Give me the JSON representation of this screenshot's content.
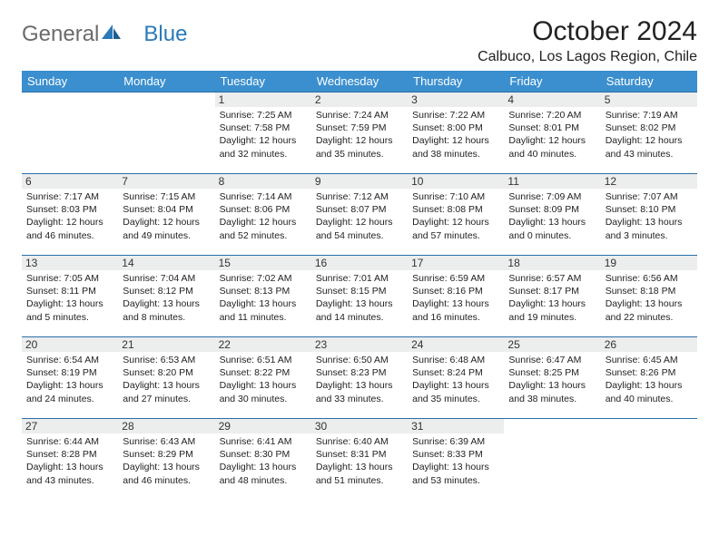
{
  "brand": {
    "part1": "General",
    "part2": "Blue"
  },
  "title": "October 2024",
  "location": "Calbuco, Los Lagos Region, Chile",
  "colors": {
    "header_bg": "#3b8fce",
    "row_border": "#2a6fa8",
    "daynum_bg": "#eceded",
    "logo_gray": "#6b6b6b",
    "logo_blue": "#2a7ab9"
  },
  "weekdays": [
    "Sunday",
    "Monday",
    "Tuesday",
    "Wednesday",
    "Thursday",
    "Friday",
    "Saturday"
  ],
  "weeks": [
    [
      null,
      null,
      {
        "n": "1",
        "sunrise": "7:25 AM",
        "sunset": "7:58 PM",
        "daylight": "12 hours and 32 minutes."
      },
      {
        "n": "2",
        "sunrise": "7:24 AM",
        "sunset": "7:59 PM",
        "daylight": "12 hours and 35 minutes."
      },
      {
        "n": "3",
        "sunrise": "7:22 AM",
        "sunset": "8:00 PM",
        "daylight": "12 hours and 38 minutes."
      },
      {
        "n": "4",
        "sunrise": "7:20 AM",
        "sunset": "8:01 PM",
        "daylight": "12 hours and 40 minutes."
      },
      {
        "n": "5",
        "sunrise": "7:19 AM",
        "sunset": "8:02 PM",
        "daylight": "12 hours and 43 minutes."
      }
    ],
    [
      {
        "n": "6",
        "sunrise": "7:17 AM",
        "sunset": "8:03 PM",
        "daylight": "12 hours and 46 minutes."
      },
      {
        "n": "7",
        "sunrise": "7:15 AM",
        "sunset": "8:04 PM",
        "daylight": "12 hours and 49 minutes."
      },
      {
        "n": "8",
        "sunrise": "7:14 AM",
        "sunset": "8:06 PM",
        "daylight": "12 hours and 52 minutes."
      },
      {
        "n": "9",
        "sunrise": "7:12 AM",
        "sunset": "8:07 PM",
        "daylight": "12 hours and 54 minutes."
      },
      {
        "n": "10",
        "sunrise": "7:10 AM",
        "sunset": "8:08 PM",
        "daylight": "12 hours and 57 minutes."
      },
      {
        "n": "11",
        "sunrise": "7:09 AM",
        "sunset": "8:09 PM",
        "daylight": "13 hours and 0 minutes."
      },
      {
        "n": "12",
        "sunrise": "7:07 AM",
        "sunset": "8:10 PM",
        "daylight": "13 hours and 3 minutes."
      }
    ],
    [
      {
        "n": "13",
        "sunrise": "7:05 AM",
        "sunset": "8:11 PM",
        "daylight": "13 hours and 5 minutes."
      },
      {
        "n": "14",
        "sunrise": "7:04 AM",
        "sunset": "8:12 PM",
        "daylight": "13 hours and 8 minutes."
      },
      {
        "n": "15",
        "sunrise": "7:02 AM",
        "sunset": "8:13 PM",
        "daylight": "13 hours and 11 minutes."
      },
      {
        "n": "16",
        "sunrise": "7:01 AM",
        "sunset": "8:15 PM",
        "daylight": "13 hours and 14 minutes."
      },
      {
        "n": "17",
        "sunrise": "6:59 AM",
        "sunset": "8:16 PM",
        "daylight": "13 hours and 16 minutes."
      },
      {
        "n": "18",
        "sunrise": "6:57 AM",
        "sunset": "8:17 PM",
        "daylight": "13 hours and 19 minutes."
      },
      {
        "n": "19",
        "sunrise": "6:56 AM",
        "sunset": "8:18 PM",
        "daylight": "13 hours and 22 minutes."
      }
    ],
    [
      {
        "n": "20",
        "sunrise": "6:54 AM",
        "sunset": "8:19 PM",
        "daylight": "13 hours and 24 minutes."
      },
      {
        "n": "21",
        "sunrise": "6:53 AM",
        "sunset": "8:20 PM",
        "daylight": "13 hours and 27 minutes."
      },
      {
        "n": "22",
        "sunrise": "6:51 AM",
        "sunset": "8:22 PM",
        "daylight": "13 hours and 30 minutes."
      },
      {
        "n": "23",
        "sunrise": "6:50 AM",
        "sunset": "8:23 PM",
        "daylight": "13 hours and 33 minutes."
      },
      {
        "n": "24",
        "sunrise": "6:48 AM",
        "sunset": "8:24 PM",
        "daylight": "13 hours and 35 minutes."
      },
      {
        "n": "25",
        "sunrise": "6:47 AM",
        "sunset": "8:25 PM",
        "daylight": "13 hours and 38 minutes."
      },
      {
        "n": "26",
        "sunrise": "6:45 AM",
        "sunset": "8:26 PM",
        "daylight": "13 hours and 40 minutes."
      }
    ],
    [
      {
        "n": "27",
        "sunrise": "6:44 AM",
        "sunset": "8:28 PM",
        "daylight": "13 hours and 43 minutes."
      },
      {
        "n": "28",
        "sunrise": "6:43 AM",
        "sunset": "8:29 PM",
        "daylight": "13 hours and 46 minutes."
      },
      {
        "n": "29",
        "sunrise": "6:41 AM",
        "sunset": "8:30 PM",
        "daylight": "13 hours and 48 minutes."
      },
      {
        "n": "30",
        "sunrise": "6:40 AM",
        "sunset": "8:31 PM",
        "daylight": "13 hours and 51 minutes."
      },
      {
        "n": "31",
        "sunrise": "6:39 AM",
        "sunset": "8:33 PM",
        "daylight": "13 hours and 53 minutes."
      },
      null,
      null
    ]
  ]
}
